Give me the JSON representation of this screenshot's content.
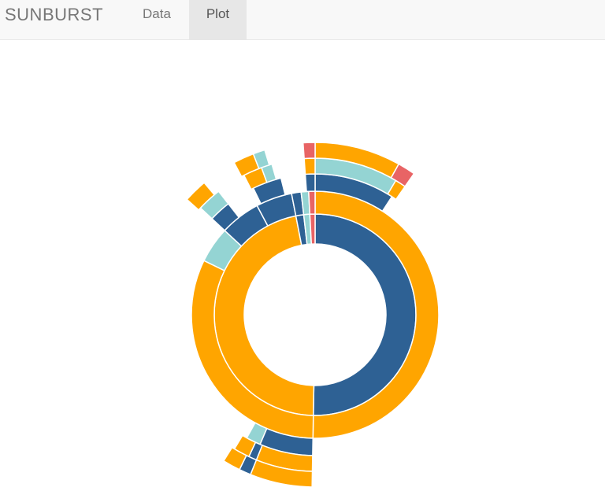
{
  "app": {
    "brand": "SUNBURST"
  },
  "nav": {
    "tabs": [
      {
        "label": "Data",
        "active": false
      },
      {
        "label": "Plot",
        "active": true
      }
    ]
  },
  "colors": {
    "orange": "#FFA500",
    "blue": "#2E6194",
    "teal": "#94D4D3",
    "red": "#E86465"
  },
  "chart_data": {
    "type": "sunburst",
    "center_angle_deg": 0,
    "segments": [
      {
        "ring": 1,
        "start": 0,
        "end": 181,
        "color": "blue"
      },
      {
        "ring": 1,
        "start": 181,
        "end": 349,
        "color": "orange"
      },
      {
        "ring": 1,
        "start": 349,
        "end": 353.5,
        "color": "blue"
      },
      {
        "ring": 1,
        "start": 353.5,
        "end": 357,
        "color": "teal"
      },
      {
        "ring": 1,
        "start": 357,
        "end": 360,
        "color": "red"
      },
      {
        "ring": 2,
        "start": 0,
        "end": 181,
        "color": "orange"
      },
      {
        "ring": 2,
        "start": 181,
        "end": 296,
        "color": "orange"
      },
      {
        "ring": 2,
        "start": 296,
        "end": 313,
        "color": "teal"
      },
      {
        "ring": 2,
        "start": 313,
        "end": 332,
        "color": "blue"
      },
      {
        "ring": 2,
        "start": 332,
        "end": 349,
        "color": "blue"
      },
      {
        "ring": 2,
        "start": 349,
        "end": 353.5,
        "color": "blue"
      },
      {
        "ring": 2,
        "start": 353.5,
        "end": 357,
        "color": "teal"
      },
      {
        "ring": 2,
        "start": 357,
        "end": 360,
        "color": "red"
      },
      {
        "ring": 3,
        "start": 0,
        "end": 33,
        "color": "blue"
      },
      {
        "ring": 3,
        "start": 181,
        "end": 203,
        "color": "blue"
      },
      {
        "ring": 3,
        "start": 203,
        "end": 209,
        "color": "teal"
      },
      {
        "ring": 3,
        "start": 313,
        "end": 322,
        "color": "blue"
      },
      {
        "ring": 3,
        "start": 334,
        "end": 346,
        "color": "blue"
      },
      {
        "ring": 3,
        "start": 356,
        "end": 360,
        "color": "blue"
      },
      {
        "ring": 4,
        "start": 0,
        "end": 31,
        "color": "teal"
      },
      {
        "ring": 4,
        "start": 31,
        "end": 35,
        "color": "orange"
      },
      {
        "ring": 4,
        "start": 181,
        "end": 202,
        "color": "orange"
      },
      {
        "ring": 4,
        "start": 202,
        "end": 205,
        "color": "blue"
      },
      {
        "ring": 4,
        "start": 205,
        "end": 211,
        "color": "orange"
      },
      {
        "ring": 4,
        "start": 313,
        "end": 322,
        "color": "teal"
      },
      {
        "ring": 4,
        "start": 333,
        "end": 340,
        "color": "orange"
      },
      {
        "ring": 4,
        "start": 340,
        "end": 344,
        "color": "teal"
      },
      {
        "ring": 4,
        "start": 356,
        "end": 360,
        "color": "orange"
      },
      {
        "ring": 5,
        "start": 0,
        "end": 29,
        "color": "orange"
      },
      {
        "ring": 5,
        "start": 29,
        "end": 35,
        "color": "red"
      },
      {
        "ring": 5,
        "start": 181,
        "end": 202,
        "color": "orange"
      },
      {
        "ring": 5,
        "start": 202,
        "end": 206,
        "color": "blue"
      },
      {
        "ring": 5,
        "start": 206,
        "end": 212,
        "color": "orange"
      },
      {
        "ring": 5,
        "start": 312,
        "end": 320,
        "color": "orange"
      },
      {
        "ring": 5,
        "start": 332,
        "end": 339,
        "color": "orange"
      },
      {
        "ring": 5,
        "start": 339,
        "end": 343,
        "color": "teal"
      },
      {
        "ring": 5,
        "start": 356,
        "end": 360,
        "color": "red"
      }
    ]
  }
}
